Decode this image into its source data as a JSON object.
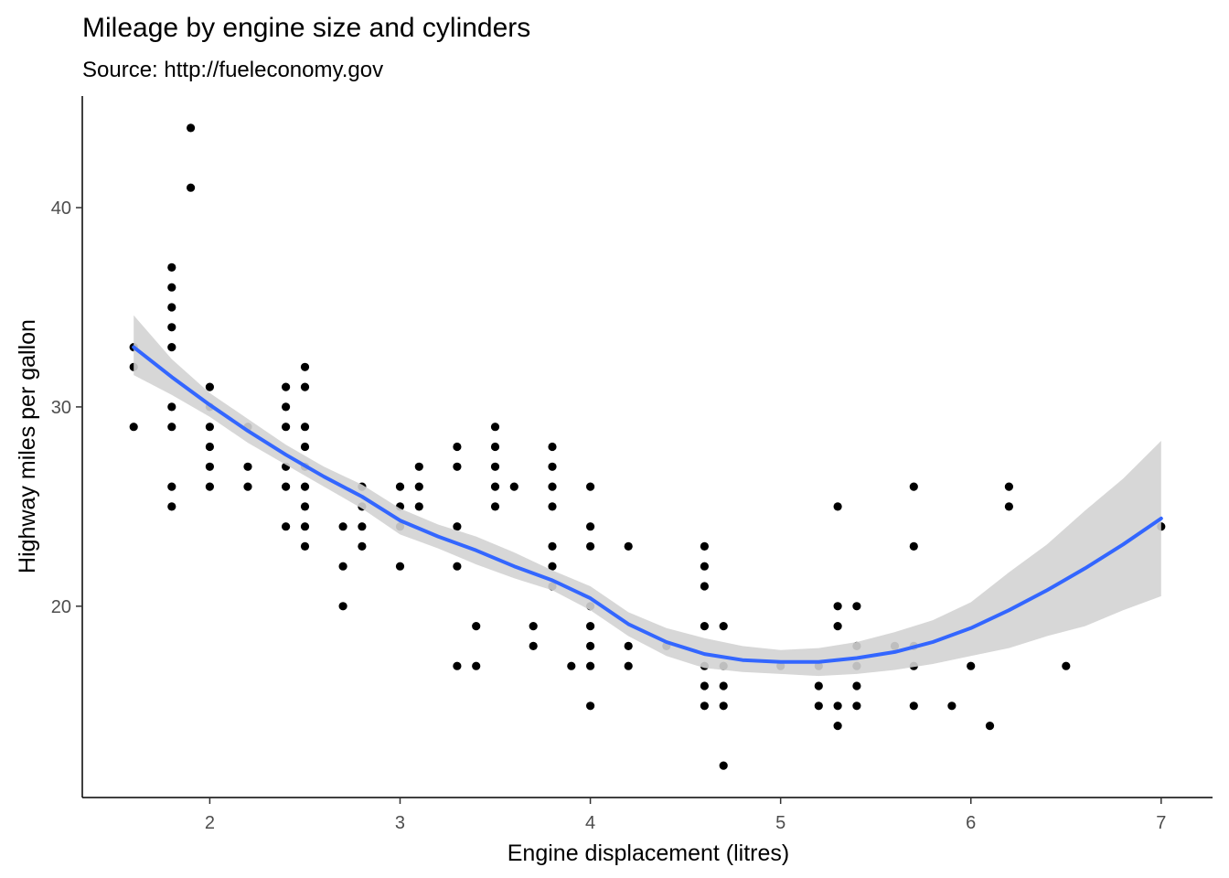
{
  "chart_data": {
    "type": "scatter",
    "title": "Mileage by engine size and cylinders",
    "subtitle": "Source: http://fueleconomy.gov",
    "xlabel": "Engine displacement (litres)",
    "ylabel": "Highway miles per gallon",
    "xlim": [
      1.33,
      7.27
    ],
    "ylim": [
      10.4,
      45.6
    ],
    "x_ticks": [
      2,
      3,
      4,
      5,
      6,
      7
    ],
    "y_ticks": [
      20,
      30,
      40
    ],
    "grid": false,
    "legend": "none",
    "point_color": "#000000",
    "smooth_color": "#3366FF",
    "ribbon_color": "#d3d3d3",
    "points": [
      [
        1.6,
        33
      ],
      [
        1.6,
        32
      ],
      [
        1.6,
        29
      ],
      [
        1.8,
        37
      ],
      [
        1.8,
        36
      ],
      [
        1.8,
        35
      ],
      [
        1.8,
        34
      ],
      [
        1.8,
        33
      ],
      [
        1.8,
        30
      ],
      [
        1.8,
        29
      ],
      [
        1.8,
        26
      ],
      [
        1.8,
        25
      ],
      [
        1.9,
        44
      ],
      [
        1.9,
        41
      ],
      [
        2.0,
        31
      ],
      [
        2.0,
        30
      ],
      [
        2.0,
        29
      ],
      [
        2.0,
        28
      ],
      [
        2.0,
        27
      ],
      [
        2.0,
        26
      ],
      [
        2.2,
        29
      ],
      [
        2.2,
        27
      ],
      [
        2.2,
        26
      ],
      [
        2.4,
        31
      ],
      [
        2.4,
        30
      ],
      [
        2.4,
        29
      ],
      [
        2.4,
        27
      ],
      [
        2.4,
        26
      ],
      [
        2.4,
        24
      ],
      [
        2.5,
        32
      ],
      [
        2.5,
        31
      ],
      [
        2.5,
        29
      ],
      [
        2.5,
        28
      ],
      [
        2.5,
        27
      ],
      [
        2.5,
        26
      ],
      [
        2.5,
        25
      ],
      [
        2.5,
        24
      ],
      [
        2.5,
        23
      ],
      [
        2.7,
        24
      ],
      [
        2.7,
        22
      ],
      [
        2.7,
        20
      ],
      [
        2.8,
        26
      ],
      [
        2.8,
        25
      ],
      [
        2.8,
        24
      ],
      [
        2.8,
        23
      ],
      [
        3.0,
        26
      ],
      [
        3.0,
        25
      ],
      [
        3.0,
        24
      ],
      [
        3.0,
        22
      ],
      [
        3.1,
        27
      ],
      [
        3.1,
        26
      ],
      [
        3.1,
        25
      ],
      [
        3.3,
        28
      ],
      [
        3.3,
        27
      ],
      [
        3.3,
        24
      ],
      [
        3.3,
        22
      ],
      [
        3.3,
        17
      ],
      [
        3.4,
        19
      ],
      [
        3.4,
        17
      ],
      [
        3.5,
        29
      ],
      [
        3.5,
        28
      ],
      [
        3.5,
        27
      ],
      [
        3.5,
        26
      ],
      [
        3.5,
        25
      ],
      [
        3.6,
        26
      ],
      [
        3.7,
        19
      ],
      [
        3.7,
        18
      ],
      [
        3.8,
        28
      ],
      [
        3.8,
        27
      ],
      [
        3.8,
        26
      ],
      [
        3.8,
        25
      ],
      [
        3.8,
        23
      ],
      [
        3.8,
        22
      ],
      [
        3.8,
        21
      ],
      [
        3.9,
        17
      ],
      [
        4.0,
        26
      ],
      [
        4.0,
        24
      ],
      [
        4.0,
        23
      ],
      [
        4.0,
        20
      ],
      [
        4.0,
        19
      ],
      [
        4.0,
        18
      ],
      [
        4.0,
        17
      ],
      [
        4.0,
        15
      ],
      [
        4.2,
        23
      ],
      [
        4.2,
        18
      ],
      [
        4.2,
        17
      ],
      [
        4.4,
        18
      ],
      [
        4.6,
        23
      ],
      [
        4.6,
        22
      ],
      [
        4.6,
        21
      ],
      [
        4.6,
        19
      ],
      [
        4.6,
        17
      ],
      [
        4.6,
        16
      ],
      [
        4.6,
        15
      ],
      [
        4.7,
        19
      ],
      [
        4.7,
        17
      ],
      [
        4.7,
        16
      ],
      [
        4.7,
        15
      ],
      [
        4.7,
        12
      ],
      [
        5.0,
        17
      ],
      [
        5.2,
        17
      ],
      [
        5.2,
        16
      ],
      [
        5.2,
        15
      ],
      [
        5.3,
        25
      ],
      [
        5.3,
        20
      ],
      [
        5.3,
        19
      ],
      [
        5.3,
        15
      ],
      [
        5.3,
        14
      ],
      [
        5.4,
        20
      ],
      [
        5.4,
        18
      ],
      [
        5.4,
        17
      ],
      [
        5.4,
        16
      ],
      [
        5.4,
        15
      ],
      [
        5.6,
        18
      ],
      [
        5.7,
        26
      ],
      [
        5.7,
        23
      ],
      [
        5.7,
        18
      ],
      [
        5.7,
        17
      ],
      [
        5.7,
        15
      ],
      [
        5.9,
        15
      ],
      [
        6.0,
        17
      ],
      [
        6.1,
        14
      ],
      [
        6.2,
        26
      ],
      [
        6.2,
        25
      ],
      [
        6.5,
        17
      ],
      [
        7.0,
        24
      ]
    ],
    "smooth": {
      "x": [
        1.6,
        1.8,
        2.0,
        2.2,
        2.4,
        2.6,
        2.8,
        3.0,
        3.2,
        3.4,
        3.6,
        3.8,
        4.0,
        4.2,
        4.4,
        4.6,
        4.8,
        5.0,
        5.2,
        5.4,
        5.6,
        5.8,
        6.0,
        6.2,
        6.4,
        6.6,
        6.8,
        7.0
      ],
      "y": [
        33.0,
        31.5,
        30.1,
        28.8,
        27.6,
        26.5,
        25.5,
        24.3,
        23.5,
        22.8,
        22.0,
        21.3,
        20.4,
        19.1,
        18.2,
        17.6,
        17.3,
        17.2,
        17.2,
        17.4,
        17.7,
        18.2,
        18.9,
        19.8,
        20.8,
        21.9,
        23.1,
        24.4
      ],
      "lower": [
        31.6,
        30.6,
        29.5,
        28.2,
        27.1,
        26.0,
        24.9,
        23.6,
        22.9,
        22.1,
        21.4,
        20.8,
        19.8,
        18.5,
        17.5,
        16.9,
        16.7,
        16.6,
        16.5,
        16.6,
        16.8,
        17.1,
        17.5,
        17.9,
        18.5,
        19.0,
        19.8,
        20.5
      ],
      "upper": [
        34.6,
        32.4,
        30.7,
        29.4,
        28.1,
        27.0,
        26.1,
        24.9,
        24.1,
        23.5,
        22.7,
        21.8,
        21.0,
        19.7,
        18.9,
        18.4,
        18.0,
        17.8,
        17.9,
        18.2,
        18.7,
        19.3,
        20.2,
        21.7,
        23.1,
        24.8,
        26.4,
        28.3
      ]
    }
  }
}
